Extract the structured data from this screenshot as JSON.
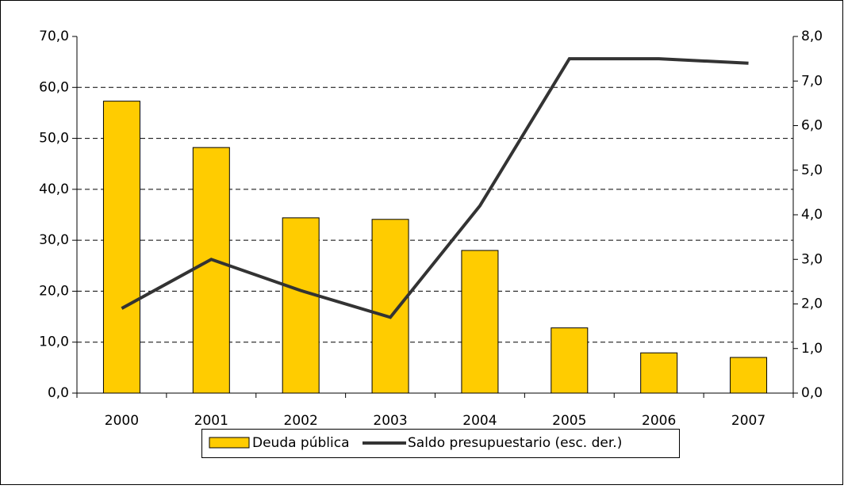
{
  "chart_data": {
    "type": "bar",
    "categories": [
      "2000",
      "2001",
      "2002",
      "2003",
      "2004",
      "2005",
      "2006",
      "2007"
    ],
    "series": [
      {
        "name": "Deuda pública",
        "type": "bar",
        "color": "#ffcc00",
        "values": [
          57.3,
          48.2,
          34.4,
          34.1,
          28.0,
          12.8,
          7.9,
          7.0
        ]
      },
      {
        "name": "Saldo presupuestario (esc. der.)",
        "type": "line",
        "axis": "y2",
        "color": "#333333",
        "values": [
          1.9,
          3.0,
          2.3,
          1.7,
          4.2,
          7.5,
          7.5,
          7.4
        ]
      }
    ],
    "ylim": [
      0,
      70
    ],
    "yticks": [
      {
        "value": 0,
        "label": "0,0"
      },
      {
        "value": 10,
        "label": "10,0"
      },
      {
        "value": 20,
        "label": "20,0"
      },
      {
        "value": 30,
        "label": "30,0"
      },
      {
        "value": 40,
        "label": "40,0"
      },
      {
        "value": 50,
        "label": "50,0"
      },
      {
        "value": 60,
        "label": "60,0"
      },
      {
        "value": 70,
        "label": "70,0"
      }
    ],
    "y2lim": [
      0,
      8
    ],
    "y2ticks": [
      {
        "value": 0,
        "label": "0,0"
      },
      {
        "value": 1,
        "label": "1,0"
      },
      {
        "value": 2,
        "label": "2,0"
      },
      {
        "value": 3,
        "label": "3,0"
      },
      {
        "value": 4,
        "label": "4,0"
      },
      {
        "value": 5,
        "label": "5,0"
      },
      {
        "value": 6,
        "label": "6,0"
      },
      {
        "value": 7,
        "label": "7,0"
      },
      {
        "value": 8,
        "label": "8,0"
      }
    ],
    "grid": true,
    "legend": "bottom"
  }
}
